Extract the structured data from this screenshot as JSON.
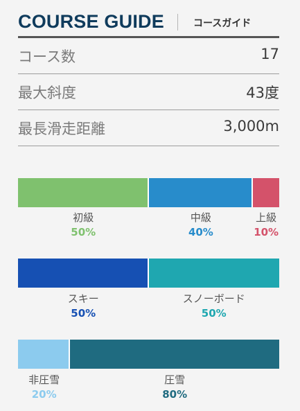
{
  "header": {
    "title": "COURSE GUIDE",
    "subtitle": "コースガイド"
  },
  "stats": [
    {
      "label": "コース数",
      "value": "17"
    },
    {
      "label": "最大斜度",
      "value": "43度"
    },
    {
      "label": "最長滑走距離",
      "value": "3,000m"
    }
  ],
  "charts": [
    {
      "name": "difficulty",
      "segments": [
        {
          "label": "初級",
          "percent": 50,
          "percent_text": "50%",
          "color": "#7fc16e"
        },
        {
          "label": "中級",
          "percent": 40,
          "percent_text": "40%",
          "color": "#288ccb"
        },
        {
          "label": "上級",
          "percent": 10,
          "percent_text": "10%",
          "color": "#d4526a"
        }
      ]
    },
    {
      "name": "activity",
      "segments": [
        {
          "label": "スキー",
          "percent": 50,
          "percent_text": "50%",
          "color": "#1650b3"
        },
        {
          "label": "スノーボード",
          "percent": 50,
          "percent_text": "50%",
          "color": "#1fa7b0"
        }
      ]
    },
    {
      "name": "grooming",
      "segments": [
        {
          "label": "非圧雪",
          "percent": 20,
          "percent_text": "20%",
          "color": "#8ccbee"
        },
        {
          "label": "圧雪",
          "percent": 80,
          "percent_text": "80%",
          "color": "#1f6b80"
        }
      ]
    }
  ]
}
